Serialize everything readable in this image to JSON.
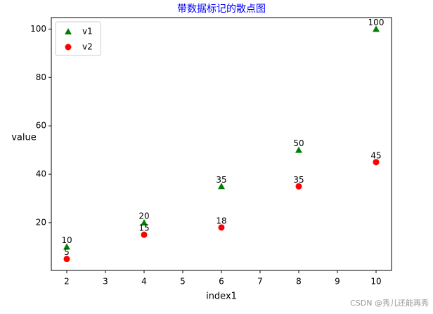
{
  "chart_data": {
    "type": "scatter",
    "title": "带数据标记的散点图",
    "title_color": "#0000ff",
    "x_label": "index1",
    "y_label": "value",
    "x": [
      2,
      4,
      6,
      8,
      10
    ],
    "series": [
      {
        "name": "v1",
        "color": "#008000",
        "marker": "triangle",
        "values": [
          10,
          20,
          35,
          50,
          100
        ]
      },
      {
        "name": "v2",
        "color": "#ff0000",
        "marker": "circle",
        "values": [
          5,
          15,
          18,
          35,
          45
        ]
      }
    ],
    "xlim": [
      1.6,
      10.4
    ],
    "ylim": [
      0.25,
      104.75
    ],
    "xticks": [
      2,
      3,
      4,
      5,
      6,
      7,
      8,
      9,
      10
    ],
    "yticks": [
      20,
      40,
      60,
      80,
      100
    ],
    "legend": "upper left",
    "grid": false,
    "watermark": "CSDN @秀儿还能再秀"
  }
}
